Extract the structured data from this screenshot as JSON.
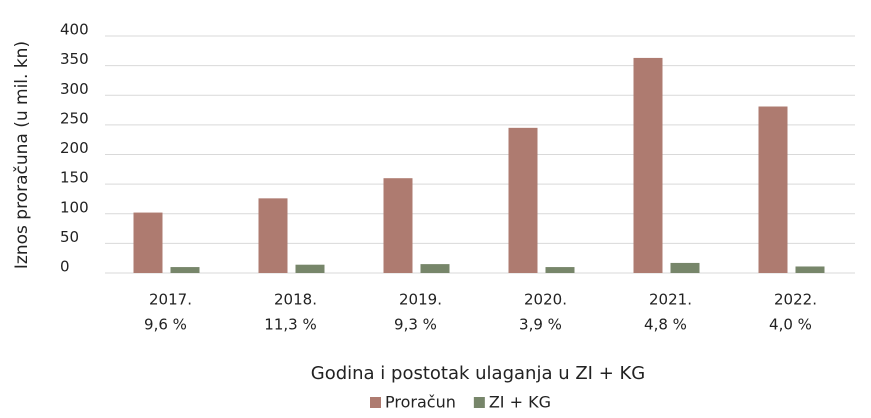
{
  "chart_data": {
    "type": "bar",
    "categories": [
      "2017.",
      "2018.",
      "2019.",
      "2020.",
      "2021.",
      "2022."
    ],
    "category_sublabels": [
      "9,6 %",
      "11,3 %",
      "9,3 %",
      "3,9 %",
      "4,8 %",
      "4,0 %"
    ],
    "series": [
      {
        "name": "Proračun",
        "color": "#ae7b70",
        "values": [
          102,
          126,
          160,
          245,
          363,
          281
        ]
      },
      {
        "name": "ZI + KG",
        "color": "#77866a",
        "values": [
          10,
          14,
          15,
          10,
          17,
          11
        ]
      }
    ],
    "xlabel": "Godina i postotak ulaganja u ZI + KG",
    "ylabel": "Iznos proračuna (u mil. kn)",
    "ylim": [
      0,
      400
    ],
    "yticks": [
      0,
      50,
      100,
      150,
      200,
      250,
      300,
      350,
      400
    ],
    "grid": true,
    "legend": "bottom"
  }
}
